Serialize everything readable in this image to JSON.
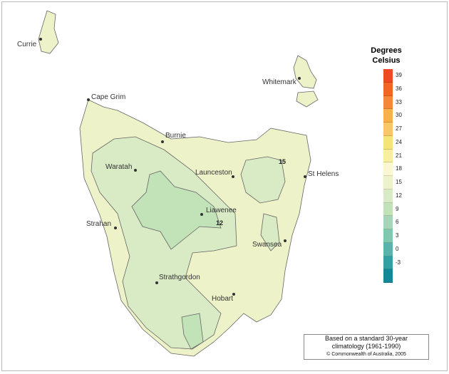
{
  "legend": {
    "title_line1": "Degrees",
    "title_line2": "Celsius",
    "ticks": [
      "39",
      "36",
      "33",
      "30",
      "27",
      "24",
      "21",
      "18",
      "15",
      "12",
      "9",
      "6",
      "3",
      "0",
      "-3"
    ],
    "colors": [
      "#f04a22",
      "#f26522",
      "#f5873a",
      "#f7b04a",
      "#f9c76a",
      "#f5e47a",
      "#f8eea0",
      "#fbf8d0",
      "#eef2c8",
      "#d8ebc4",
      "#c2e2b8",
      "#a6d6b8",
      "#80c8b0",
      "#58b4aa",
      "#34a0a4",
      "#148898"
    ]
  },
  "places": [
    "Currie",
    "Cape Grim",
    "Whitemark",
    "Burnie",
    "Waratah",
    "Launceston",
    "St Helens",
    "Liawenee",
    "Strahan",
    "Swansea",
    "Strathgordon",
    "Hobart"
  ],
  "contour_labels": [
    "15",
    "12"
  ],
  "note": {
    "line1": "Based on a standard 30-year",
    "line2": "climatology (1961-1990)",
    "copyright": "© Commonwealth of Australia, 2005"
  }
}
